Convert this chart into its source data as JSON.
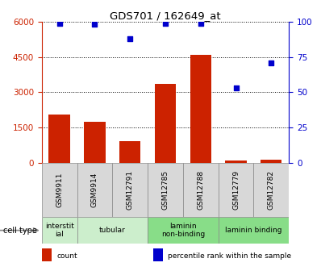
{
  "title": "GDS701 / 162649_at",
  "samples": [
    "GSM9911",
    "GSM9914",
    "GSM12791",
    "GSM12785",
    "GSM12788",
    "GSM12779",
    "GSM12782"
  ],
  "counts": [
    2050,
    1750,
    920,
    3350,
    4600,
    80,
    130
  ],
  "percentiles": [
    99,
    98,
    88,
    99,
    99,
    53,
    71
  ],
  "ylim_left": [
    0,
    6000
  ],
  "ylim_right": [
    0,
    100
  ],
  "yticks_left": [
    0,
    1500,
    3000,
    4500,
    6000
  ],
  "yticks_right": [
    0,
    25,
    50,
    75,
    100
  ],
  "cell_types": [
    {
      "label": "interstit\nial",
      "start": 0,
      "end": 1,
      "color": "#cceecc"
    },
    {
      "label": "tubular",
      "start": 1,
      "end": 3,
      "color": "#cceecc"
    },
    {
      "label": "laminin\nnon-binding",
      "start": 3,
      "end": 5,
      "color": "#88dd88"
    },
    {
      "label": "laminin binding",
      "start": 5,
      "end": 7,
      "color": "#88dd88"
    }
  ],
  "bar_color": "#cc2200",
  "dot_color": "#0000cc",
  "grid_color": "#000000",
  "bg_color": "#ffffff",
  "left_axis_color": "#cc2200",
  "right_axis_color": "#0000cc",
  "sample_box_color": "#d8d8d8",
  "legend_items": [
    {
      "color": "#cc2200",
      "label": "count"
    },
    {
      "color": "#0000cc",
      "label": "percentile rank within the sample"
    }
  ]
}
